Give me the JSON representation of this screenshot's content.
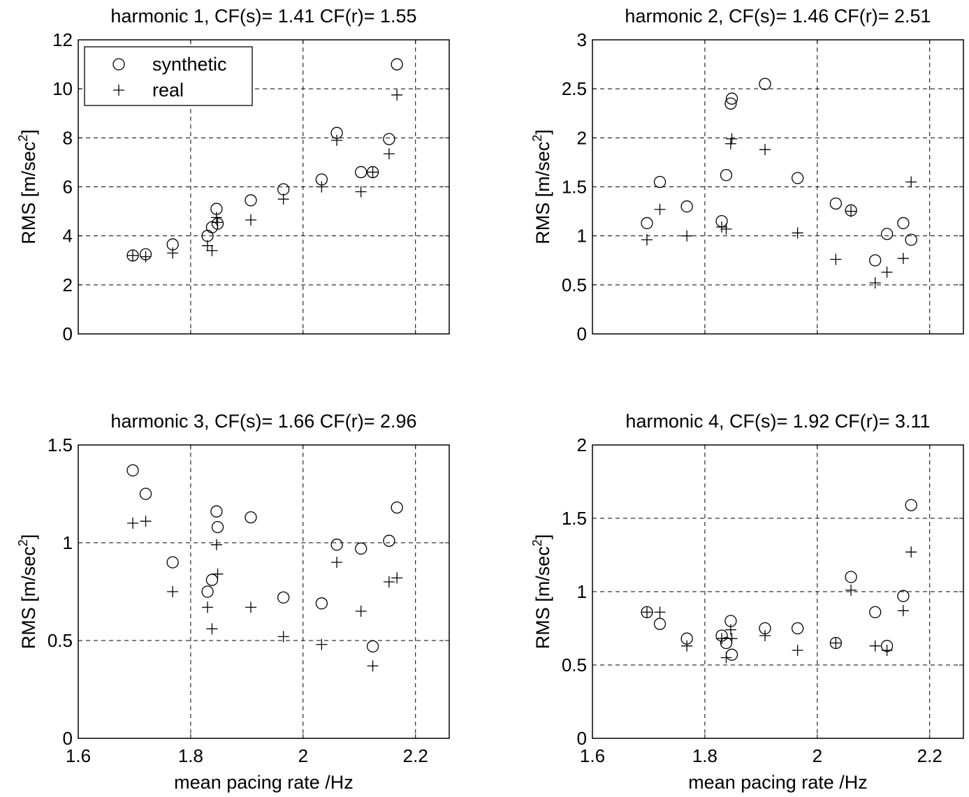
{
  "chart_data": [
    {
      "type": "scatter",
      "title": "harmonic 1, CF(s)= 1.41 CF(r)= 1.55",
      "xlabel": "",
      "ylabel": "RMS [m/sec",
      "ylabel_sup": "2",
      "ylabel_end": "]",
      "xlim": [
        1.6,
        2.26
      ],
      "ylim": [
        0,
        12
      ],
      "xticks": [
        1.6,
        1.8,
        2.0,
        2.2
      ],
      "xtick_labels": [],
      "yticks": [
        0,
        2,
        4,
        6,
        8,
        10,
        12
      ],
      "ytick_labels": [
        "0",
        "2",
        "4",
        "6",
        "8",
        "10",
        "12"
      ],
      "grid": true,
      "legend": {
        "placement": "top-left",
        "entries": [
          {
            "marker": "circle",
            "label": "synthetic"
          },
          {
            "marker": "plus",
            "label": "real"
          }
        ]
      },
      "series": [
        {
          "name": "synthetic",
          "marker": "circle",
          "x": [
            1.697,
            1.72,
            1.768,
            1.83,
            1.838,
            1.846,
            1.848,
            1.907,
            1.965,
            2.033,
            2.06,
            2.103,
            2.124,
            2.153,
            2.167
          ],
          "y": [
            3.2,
            3.25,
            3.65,
            4.0,
            4.35,
            5.1,
            4.5,
            5.45,
            5.9,
            6.3,
            8.2,
            6.6,
            6.6,
            7.95,
            11.0
          ]
        },
        {
          "name": "real",
          "marker": "plus",
          "x": [
            1.697,
            1.72,
            1.768,
            1.83,
            1.838,
            1.846,
            1.848,
            1.907,
            1.965,
            2.033,
            2.06,
            2.103,
            2.124,
            2.153,
            2.167
          ],
          "y": [
            3.2,
            3.15,
            3.3,
            3.6,
            3.4,
            4.75,
            4.55,
            4.65,
            5.5,
            6.0,
            7.9,
            5.8,
            6.6,
            7.35,
            9.75
          ]
        }
      ]
    },
    {
      "type": "scatter",
      "title": "harmonic 2, CF(s)= 1.46 CF(r)= 2.51",
      "xlabel": "",
      "ylabel": "RMS [m/sec",
      "ylabel_sup": "2",
      "ylabel_end": "]",
      "xlim": [
        1.6,
        2.26
      ],
      "ylim": [
        0,
        3
      ],
      "xticks": [
        1.6,
        1.8,
        2.0,
        2.2
      ],
      "xtick_labels": [],
      "yticks": [
        0,
        0.5,
        1,
        1.5,
        2,
        2.5,
        3
      ],
      "ytick_labels": [
        "0",
        "0.5",
        "1",
        "1.5",
        "2",
        "2.5",
        "3"
      ],
      "grid": true,
      "series": [
        {
          "name": "synthetic",
          "marker": "circle",
          "x": [
            1.697,
            1.72,
            1.768,
            1.83,
            1.838,
            1.846,
            1.848,
            1.907,
            1.965,
            2.033,
            2.06,
            2.103,
            2.124,
            2.153,
            2.167
          ],
          "y": [
            1.13,
            1.55,
            1.3,
            1.15,
            1.62,
            2.35,
            2.4,
            2.55,
            1.59,
            1.33,
            1.26,
            0.75,
            1.02,
            1.13,
            0.96
          ]
        },
        {
          "name": "real",
          "marker": "plus",
          "x": [
            1.697,
            1.72,
            1.768,
            1.83,
            1.838,
            1.846,
            1.848,
            1.907,
            1.965,
            2.033,
            2.06,
            2.103,
            2.124,
            2.153,
            2.167
          ],
          "y": [
            0.96,
            1.27,
            1.0,
            1.09,
            1.07,
            1.94,
            1.99,
            1.88,
            1.03,
            0.76,
            1.25,
            0.52,
            0.63,
            0.77,
            1.55
          ]
        }
      ]
    },
    {
      "type": "scatter",
      "title": "harmonic 3, CF(s)= 1.66 CF(r)= 2.96",
      "xlabel": "mean pacing rate /Hz",
      "ylabel": "RMS [m/sec",
      "ylabel_sup": "2",
      "ylabel_end": "]",
      "xlim": [
        1.6,
        2.26
      ],
      "ylim": [
        0,
        1.5
      ],
      "xticks": [
        1.6,
        1.8,
        2.0,
        2.2
      ],
      "xtick_labels": [
        "1.6",
        "1.8",
        "2",
        "2.2"
      ],
      "yticks": [
        0,
        0.5,
        1,
        1.5
      ],
      "ytick_labels": [
        "0",
        "0.5",
        "1",
        "1.5"
      ],
      "grid": true,
      "series": [
        {
          "name": "synthetic",
          "marker": "circle",
          "x": [
            1.697,
            1.72,
            1.768,
            1.83,
            1.838,
            1.846,
            1.848,
            1.907,
            1.965,
            2.033,
            2.06,
            2.103,
            2.124,
            2.153,
            2.167
          ],
          "y": [
            1.37,
            1.25,
            0.9,
            0.75,
            0.81,
            1.16,
            1.08,
            1.13,
            0.72,
            0.69,
            0.99,
            0.97,
            0.47,
            1.01,
            1.18
          ]
        },
        {
          "name": "real",
          "marker": "plus",
          "x": [
            1.697,
            1.72,
            1.768,
            1.83,
            1.838,
            1.846,
            1.848,
            1.907,
            1.965,
            2.033,
            2.06,
            2.103,
            2.124,
            2.153,
            2.167
          ],
          "y": [
            1.1,
            1.11,
            0.75,
            0.67,
            0.56,
            0.99,
            0.84,
            0.67,
            0.52,
            0.48,
            0.9,
            0.65,
            0.37,
            0.8,
            0.82
          ]
        }
      ]
    },
    {
      "type": "scatter",
      "title": "harmonic 4, CF(s)= 1.92 CF(r)= 3.11",
      "xlabel": "mean pacing rate /Hz",
      "ylabel": "RMS [m/sec",
      "ylabel_sup": "2",
      "ylabel_end": "]",
      "xlim": [
        1.6,
        2.26
      ],
      "ylim": [
        0,
        2
      ],
      "xticks": [
        1.6,
        1.8,
        2.0,
        2.2
      ],
      "xtick_labels": [
        "1.6",
        "1.8",
        "2",
        "2.2"
      ],
      "yticks": [
        0,
        0.5,
        1,
        1.5,
        2
      ],
      "ytick_labels": [
        "0",
        "0.5",
        "1",
        "1.5",
        "2"
      ],
      "grid": true,
      "series": [
        {
          "name": "synthetic",
          "marker": "circle",
          "x": [
            1.697,
            1.72,
            1.768,
            1.83,
            1.838,
            1.846,
            1.848,
            1.907,
            1.965,
            2.033,
            2.06,
            2.103,
            2.124,
            2.153,
            2.167
          ],
          "y": [
            0.86,
            0.78,
            0.68,
            0.7,
            0.65,
            0.8,
            0.57,
            0.75,
            0.75,
            0.65,
            1.1,
            0.86,
            0.63,
            0.97,
            1.59
          ]
        },
        {
          "name": "real",
          "marker": "plus",
          "x": [
            1.697,
            1.72,
            1.768,
            1.83,
            1.838,
            1.846,
            1.848,
            1.907,
            1.965,
            2.033,
            2.06,
            2.103,
            2.124,
            2.153,
            2.167
          ],
          "y": [
            0.86,
            0.86,
            0.63,
            0.68,
            0.55,
            0.74,
            0.68,
            0.7,
            0.6,
            0.65,
            1.01,
            0.63,
            0.6,
            0.87,
            1.27
          ]
        }
      ]
    }
  ]
}
